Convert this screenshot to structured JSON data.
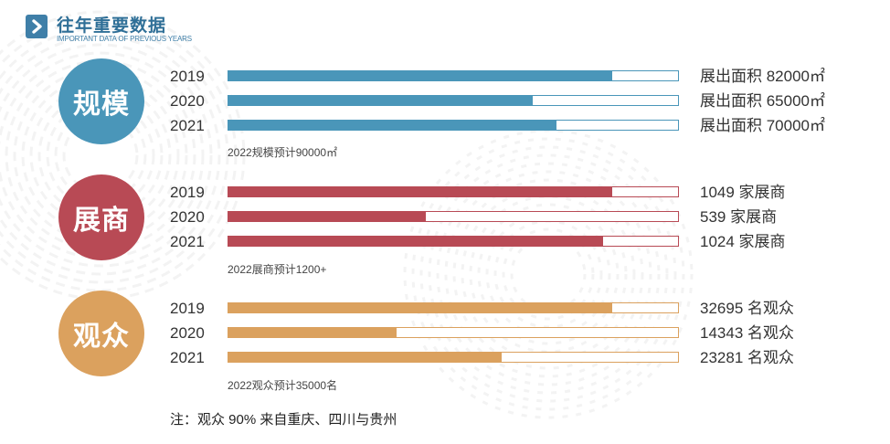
{
  "header": {
    "title": "往年重要数据",
    "subtitle": "IMPORTANT DATA OF PREVIOUS YEARS",
    "logo_icon": "play-arrow-icon"
  },
  "colors": {
    "blue": "#4a96b9",
    "red": "#b84a55",
    "orange": "#dba15e",
    "title": "#2f6f97"
  },
  "sections": [
    {
      "label": "规模",
      "note": "2022规模预计90000㎡",
      "rows": [
        {
          "year": "2019",
          "value": "展出面积 82000㎡"
        },
        {
          "year": "2020",
          "value": "展出面积 65000㎡"
        },
        {
          "year": "2021",
          "value": "展出面积 70000㎡"
        }
      ]
    },
    {
      "label": "展商",
      "note": "2022展商预计1200+",
      "rows": [
        {
          "year": "2019",
          "value": "1049 家展商"
        },
        {
          "year": "2020",
          "value": "539 家展商"
        },
        {
          "year": "2021",
          "value": "1024 家展商"
        }
      ]
    },
    {
      "label": "观众",
      "note": "2022观众预计35000名",
      "rows": [
        {
          "year": "2019",
          "value": "32695 名观众"
        },
        {
          "year": "2020",
          "value": "14343 名观众"
        },
        {
          "year": "2021",
          "value": "23281 名观众"
        }
      ]
    }
  ],
  "footnote": "注：观众 90% 来自重庆、四川与贵州",
  "chart_data": [
    {
      "type": "bar",
      "orientation": "horizontal",
      "title": "规模",
      "categories": [
        "2019",
        "2020",
        "2021"
      ],
      "values": [
        82000,
        65000,
        70000
      ],
      "unit": "㎡",
      "xlim": [
        0,
        96000
      ]
    },
    {
      "type": "bar",
      "orientation": "horizontal",
      "title": "展商",
      "categories": [
        "2019",
        "2020",
        "2021"
      ],
      "values": [
        1049,
        539,
        1024
      ],
      "xlim": [
        0,
        1230
      ]
    },
    {
      "type": "bar",
      "orientation": "horizontal",
      "title": "观众",
      "categories": [
        "2019",
        "2020",
        "2021"
      ],
      "values": [
        32695,
        14343,
        23281
      ],
      "xlim": [
        0,
        38300
      ]
    }
  ]
}
